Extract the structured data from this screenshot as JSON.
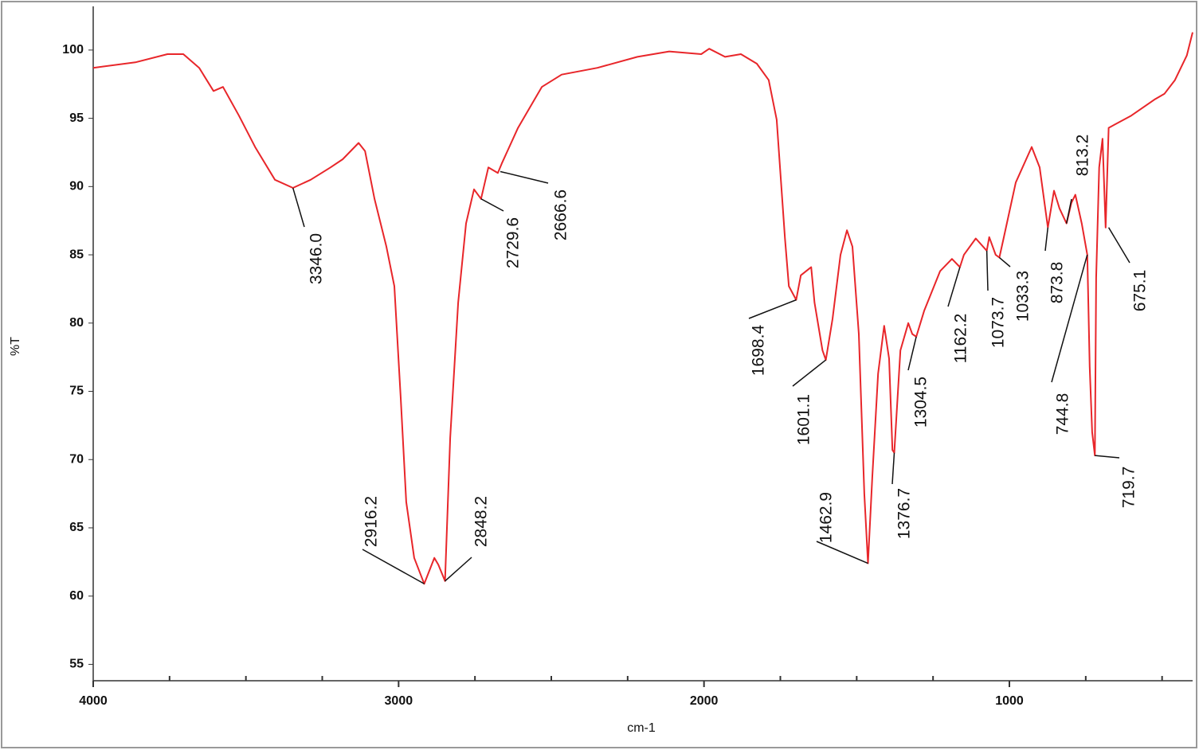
{
  "chart_data": {
    "type": "line",
    "xlabel": "cm-1",
    "ylabel": "%T",
    "color": "#e8262a",
    "x": [
      4000,
      3862,
      3757,
      3705,
      3653,
      3606,
      3575,
      3523,
      3470,
      3405,
      3346,
      3288,
      3223,
      3183,
      3131,
      3110,
      3079,
      3040,
      3014,
      2993,
      2975,
      2949,
      2916,
      2883,
      2870,
      2848,
      2831,
      2805,
      2779,
      2753,
      2730,
      2706,
      2675,
      2662,
      2609,
      2531,
      2466,
      2349,
      2218,
      2114,
      2009,
      1983,
      1931,
      1879,
      1827,
      1788,
      1762,
      1735,
      1722,
      1698,
      1683,
      1649,
      1638,
      1612,
      1601,
      1579,
      1553,
      1532,
      1514,
      1493,
      1475,
      1463,
      1449,
      1430,
      1410,
      1394,
      1383,
      1377,
      1357,
      1331,
      1318,
      1305,
      1279,
      1227,
      1188,
      1162,
      1149,
      1110,
      1074,
      1066,
      1045,
      1033,
      1019,
      979,
      927,
      901,
      874,
      854,
      836,
      813,
      797,
      784,
      763,
      745,
      737,
      729,
      720,
      716,
      706,
      695,
      685,
      675,
      601,
      523,
      492,
      458,
      419,
      400
    ],
    "values": [
      98.7,
      99.1,
      99.7,
      99.7,
      98.7,
      97.0,
      97.3,
      95.2,
      92.9,
      90.5,
      89.9,
      90.5,
      91.4,
      92.0,
      93.2,
      92.6,
      89.1,
      85.6,
      82.7,
      74.5,
      66.9,
      62.8,
      60.9,
      62.8,
      62.3,
      61.1,
      71.6,
      81.5,
      87.3,
      89.8,
      89.1,
      91.4,
      91.0,
      91.7,
      94.3,
      97.3,
      98.2,
      98.7,
      99.5,
      99.9,
      99.7,
      100.1,
      99.5,
      99.7,
      99.0,
      97.8,
      94.9,
      86.2,
      82.7,
      81.7,
      83.5,
      84.1,
      81.5,
      78.0,
      77.3,
      80.3,
      85.0,
      86.8,
      85.6,
      79.2,
      67.5,
      62.4,
      68.7,
      76.3,
      79.8,
      77.4,
      70.7,
      70.5,
      78.0,
      80.0,
      79.2,
      79.0,
      80.9,
      83.8,
      84.7,
      84.1,
      85.0,
      86.2,
      85.3,
      86.3,
      85.0,
      84.8,
      86.2,
      90.3,
      92.9,
      91.4,
      87.0,
      89.7,
      88.4,
      87.3,
      88.8,
      89.4,
      87.3,
      85.0,
      76.8,
      72.0,
      70.3,
      83.3,
      91.4,
      93.5,
      87.0,
      94.3,
      95.2,
      96.4,
      96.8,
      97.8,
      99.6,
      101.3
    ],
    "xlim": [
      4000,
      400
    ],
    "ylim": [
      53.8,
      103.2
    ],
    "xticks": [
      4000,
      3000,
      2000,
      1000
    ],
    "xminorticks": [
      3750,
      3500,
      3250,
      2750,
      2500,
      2250,
      1750,
      1500,
      1250,
      750,
      500
    ],
    "yticks": [
      55,
      60,
      65,
      70,
      75,
      80,
      85,
      90,
      95,
      100
    ],
    "annotations": [
      {
        "label": "3346.0",
        "x": 3346,
        "y": 89.9
      },
      {
        "label": "2916.2",
        "x": 2916,
        "y": 60.9
      },
      {
        "label": "2848.2",
        "x": 2848,
        "y": 61.1
      },
      {
        "label": "2729.6",
        "x": 2730,
        "y": 89.1
      },
      {
        "label": "2666.6",
        "x": 2667,
        "y": 91.1
      },
      {
        "label": "1698.4",
        "x": 1698,
        "y": 81.7
      },
      {
        "label": "1601.1",
        "x": 1601,
        "y": 77.3
      },
      {
        "label": "1462.9",
        "x": 1463,
        "y": 62.4
      },
      {
        "label": "1376.7",
        "x": 1377,
        "y": 70.5
      },
      {
        "label": "1304.5",
        "x": 1305,
        "y": 79.0
      },
      {
        "label": "1162.2",
        "x": 1162,
        "y": 84.1
      },
      {
        "label": "1073.7",
        "x": 1074,
        "y": 85.3
      },
      {
        "label": "1033.3",
        "x": 1033,
        "y": 84.8
      },
      {
        "label": "873.8",
        "x": 874,
        "y": 87.0
      },
      {
        "label": "813.2",
        "x": 813,
        "y": 87.3
      },
      {
        "label": "744.8",
        "x": 745,
        "y": 85.0
      },
      {
        "label": "719.7",
        "x": 720,
        "y": 70.3
      },
      {
        "label": "675.1",
        "x": 675,
        "y": 87.0
      }
    ]
  }
}
